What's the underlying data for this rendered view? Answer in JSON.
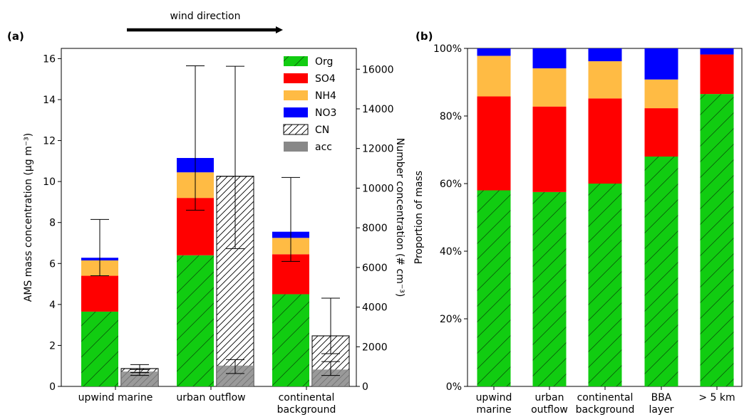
{
  "wind_label": "wind direction",
  "chart_data": [
    {
      "panel": "(a)",
      "type": "bar",
      "stacked": true,
      "categories": [
        "upwind marine",
        "urban outflow",
        "continental background"
      ],
      "ylabel": "AMS mass concentration (µg m⁻³)",
      "ylim": [
        0,
        16.5
      ],
      "yticks": [
        0,
        2,
        4,
        6,
        8,
        10,
        12,
        14,
        16
      ],
      "y2label": "Number concentration (# cm⁻³)",
      "y2lim": [
        0,
        17050
      ],
      "y2ticks": [
        0,
        2000,
        4000,
        6000,
        8000,
        10000,
        12000,
        14000,
        16000
      ],
      "series": [
        {
          "name": "Org",
          "axis": "left",
          "color": "#11cc11",
          "hatch": true,
          "values": [
            3.65,
            6.4,
            4.5
          ]
        },
        {
          "name": "SO4",
          "axis": "left",
          "color": "#ff0000",
          "hatch": false,
          "values": [
            1.75,
            2.8,
            1.95
          ]
        },
        {
          "name": "NH4",
          "axis": "left",
          "color": "#ffbb44",
          "hatch": false,
          "values": [
            0.75,
            1.25,
            0.8
          ]
        },
        {
          "name": "NO3",
          "axis": "left",
          "color": "#0000ff",
          "hatch": false,
          "values": [
            0.13,
            0.7,
            0.3
          ]
        },
        {
          "name": "CN",
          "axis": "right",
          "color": "#ffffff",
          "hatch": true,
          "values": [
            900,
            10600,
            2550
          ]
        },
        {
          "name": "acc",
          "axis": "right",
          "color": "#888888",
          "hatch": false,
          "values": [
            750,
            1050,
            850
          ]
        }
      ],
      "error_bars": {
        "ams_total": {
          "axis": "left",
          "low": [
            5.4,
            8.6,
            6.1
          ],
          "high": [
            8.15,
            15.65,
            10.2
          ]
        },
        "CN": {
          "axis": "right",
          "low": [
            700,
            6950,
            1650
          ],
          "high": [
            1100,
            16150,
            4450
          ]
        },
        "acc": {
          "axis": "right",
          "low": [
            550,
            650,
            550
          ],
          "high": [
            850,
            1350,
            1250
          ]
        }
      }
    },
    {
      "panel": "(b)",
      "type": "bar",
      "stacked": true,
      "categories": [
        [
          "upwind",
          "marine"
        ],
        [
          "urban",
          "outflow"
        ],
        [
          "continental",
          "background"
        ],
        [
          "BBA",
          "layer"
        ],
        [
          "> 5 km"
        ]
      ],
      "ylabel": "Proportion of mass",
      "ylim": [
        0,
        1
      ],
      "yticks": [
        "0%",
        "20%",
        "40%",
        "60%",
        "80%",
        "100%"
      ],
      "series": [
        {
          "name": "Org",
          "color": "#11cc11",
          "hatch": true,
          "values": [
            0.58,
            0.575,
            0.6,
            0.68,
            0.865
          ]
        },
        {
          "name": "SO4",
          "color": "#ff0000",
          "hatch": false,
          "values": [
            0.278,
            0.253,
            0.252,
            0.143,
            0.117
          ]
        },
        {
          "name": "NH4",
          "color": "#ffbb44",
          "hatch": false,
          "values": [
            0.12,
            0.113,
            0.11,
            0.085,
            0.0
          ]
        },
        {
          "name": "NO3",
          "color": "#0000ff",
          "hatch": false,
          "values": [
            0.022,
            0.059,
            0.038,
            0.092,
            0.018
          ]
        }
      ]
    }
  ]
}
